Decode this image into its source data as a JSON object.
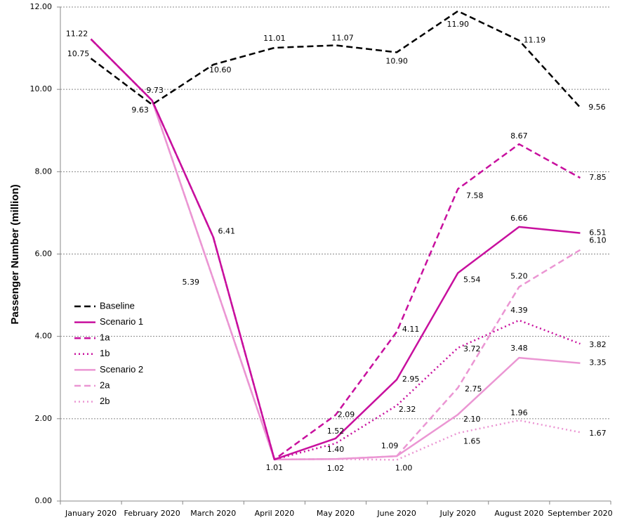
{
  "chart_data": {
    "type": "line",
    "y_label": "Passenger Number (million)",
    "categories": [
      "January 2020",
      "February 2020",
      "March 2020",
      "April 2020",
      "May 2020",
      "June 2020",
      "July 2020",
      "August 2020",
      "September 2020"
    ],
    "ylim": [
      0,
      12
    ],
    "yticks": [
      {
        "value": 0,
        "label": "0.00"
      },
      {
        "value": 2,
        "label": "2.00"
      },
      {
        "value": 4,
        "label": "4.00"
      },
      {
        "value": 6,
        "label": "6.00"
      },
      {
        "value": 8,
        "label": "8.00"
      },
      {
        "value": 10,
        "label": "10.00"
      },
      {
        "value": 12,
        "label": "12.00"
      }
    ],
    "grid": true,
    "legend": "left",
    "series": [
      {
        "name": "Baseline",
        "color": "#000000",
        "style": "dashed",
        "values": [
          10.75,
          9.63,
          10.6,
          11.01,
          11.07,
          10.9,
          11.9,
          11.19,
          9.56
        ],
        "value_labels": [
          "10.75",
          "9.63",
          "10.60",
          "11.01",
          "11.07",
          "10.90",
          "11.90",
          "11.19",
          "9.56"
        ]
      },
      {
        "name": "Scenario 1",
        "color": "#c8109e",
        "style": "solid",
        "values": [
          11.22,
          9.73,
          6.41,
          1.01,
          1.52,
          2.95,
          5.54,
          6.66,
          6.51
        ],
        "value_labels": [
          "11.22",
          "9.73",
          "6.41",
          "1.01",
          "1.52",
          "2.95",
          "5.54",
          "6.66",
          "6.51"
        ]
      },
      {
        "name": "1a",
        "color": "#c8109e",
        "style": "dashed",
        "values": [
          11.22,
          9.73,
          6.41,
          1.01,
          2.09,
          4.11,
          7.58,
          8.67,
          7.85
        ],
        "value_labels": [
          null,
          null,
          null,
          null,
          "2.09",
          "4.11",
          "7.58",
          "8.67",
          "7.85"
        ]
      },
      {
        "name": "1b",
        "color": "#c8109e",
        "style": "dotted",
        "values": [
          11.22,
          9.73,
          6.41,
          1.01,
          1.4,
          2.32,
          3.72,
          4.39,
          3.82
        ],
        "value_labels": [
          null,
          null,
          null,
          null,
          "1.40",
          "2.32",
          "3.72",
          "4.39",
          "3.82"
        ]
      },
      {
        "name": "Scenario 2",
        "color": "#eb96d3",
        "style": "solid",
        "values": [
          null,
          9.73,
          5.39,
          1.01,
          1.02,
          1.09,
          2.1,
          3.48,
          3.35
        ],
        "value_labels": [
          null,
          null,
          "5.39",
          null,
          "1.02",
          "1.09",
          "2.10",
          "3.48",
          "3.35"
        ]
      },
      {
        "name": "2a",
        "color": "#eb96d3",
        "style": "dashed",
        "values": [
          null,
          9.73,
          5.39,
          1.01,
          1.02,
          1.09,
          2.75,
          5.2,
          6.1
        ],
        "value_labels": [
          null,
          null,
          null,
          null,
          null,
          null,
          "2.75",
          "5.20",
          "6.10"
        ]
      },
      {
        "name": "2b",
        "color": "#eb96d3",
        "style": "dotted",
        "values": [
          null,
          9.73,
          5.39,
          1.01,
          1.02,
          1.0,
          1.65,
          1.96,
          1.67
        ],
        "value_labels": [
          null,
          null,
          null,
          null,
          null,
          "1.00",
          "1.65",
          "1.96",
          "1.67"
        ]
      }
    ]
  }
}
